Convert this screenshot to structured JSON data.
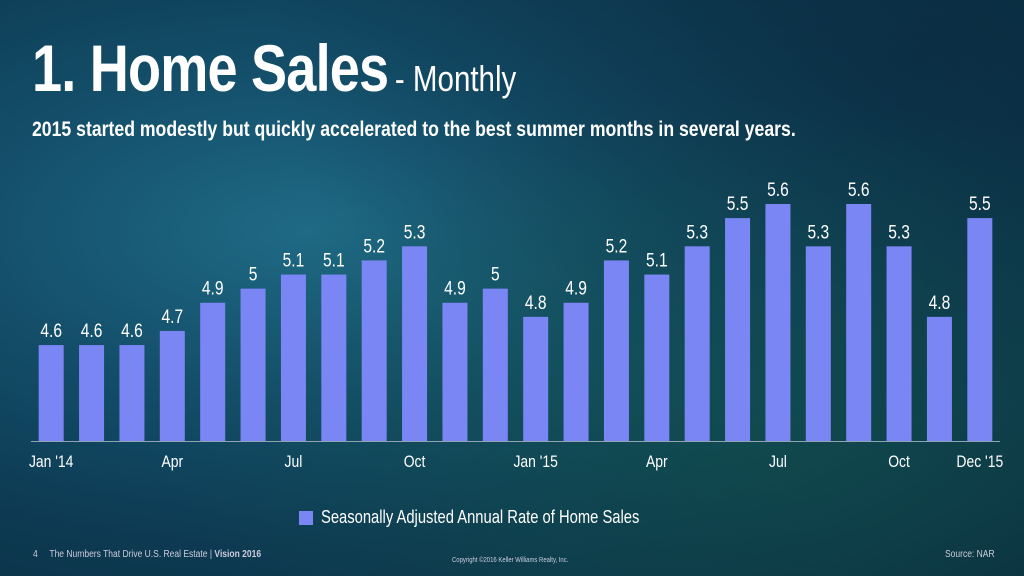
{
  "header": {
    "title": "1. Home Sales",
    "title_suffix": "- Monthly",
    "subtitle": "2015 started modestly but quickly accelerated to the best summer months in several years."
  },
  "chart_data": {
    "type": "bar",
    "categories": [
      "Jan '14",
      "Feb '14",
      "Mar '14",
      "Apr '14",
      "May '14",
      "Jun '14",
      "Jul '14",
      "Aug '14",
      "Sep '14",
      "Oct '14",
      "Nov '14",
      "Dec '14",
      "Jan '15",
      "Feb '15",
      "Mar '15",
      "Apr '15",
      "May '15",
      "Jun '15",
      "Jul '15",
      "Aug '15",
      "Sep '15",
      "Oct '15",
      "Nov '15",
      "Dec '15"
    ],
    "tick_labels": [
      "Jan '14",
      "",
      "",
      "Apr",
      "",
      "",
      "Jul",
      "",
      "",
      "Oct",
      "",
      "",
      "Jan '15",
      "",
      "",
      "Apr",
      "",
      "",
      "Jul",
      "",
      "",
      "Oct",
      "",
      "Dec '15"
    ],
    "series": [
      {
        "name": "Seasonally Adjusted Annual Rate of Home Sales",
        "values": [
          4.6,
          4.6,
          4.6,
          4.7,
          4.9,
          5,
          5.1,
          5.1,
          5.2,
          5.3,
          4.9,
          5,
          4.8,
          4.9,
          5.2,
          5.1,
          5.3,
          5.5,
          5.6,
          5.3,
          5.6,
          5.3,
          4.8,
          5.5
        ],
        "labels": [
          "4.6",
          "4.6",
          "4.6",
          "4.7",
          "4.9",
          "5",
          "5.1",
          "5.1",
          "5.2",
          "5.3",
          "4.9",
          "5",
          "4.8",
          "4.9",
          "5.2",
          "5.1",
          "5.3",
          "5.5",
          "5.6",
          "5.3",
          "5.6",
          "5.3",
          "4.8",
          "5.5"
        ]
      }
    ],
    "ylim": [
      3.92,
      5.6
    ],
    "grid": false,
    "legend_position": "bottom",
    "bar_color": "#7b86f5"
  },
  "footer": {
    "page": "4",
    "text": "The Numbers That Drive U.S. Real Estate | ",
    "brand": "Vision 2016",
    "copyright": "Copyright ©2016 Keller Williams Realty, Inc.",
    "source": "Source: NAR"
  }
}
